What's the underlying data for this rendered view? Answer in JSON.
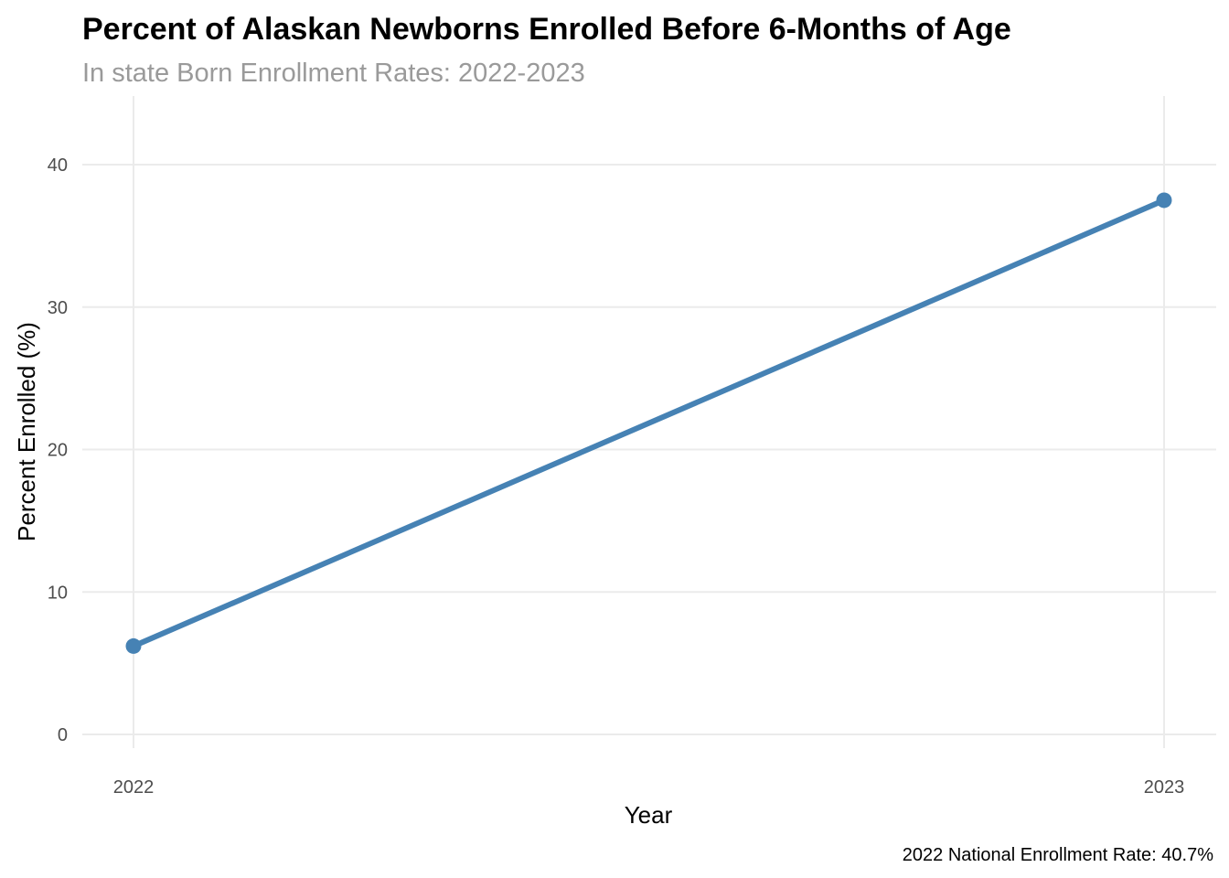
{
  "chart_data": {
    "type": "line",
    "title": "Percent of Alaskan Newborns Enrolled Before 6-Months of Age",
    "subtitle": "In state Born Enrollment Rates: 2022-2023",
    "xlabel": "Year",
    "ylabel": "Percent Enrolled (%)",
    "caption": "2022 National Enrollment Rate: 40.7%",
    "x": [
      "2022",
      "2023"
    ],
    "series": [
      {
        "values": [
          6.2,
          37.5
        ]
      }
    ],
    "ylim": [
      0,
      44
    ],
    "yticks": [
      "0",
      "10",
      "20",
      "30",
      "40"
    ],
    "ytick_values": [
      0,
      10,
      20,
      30,
      40
    ],
    "grid": true,
    "legend": "none",
    "colors": {
      "series": "#4682b4",
      "grid": "#ebebeb"
    }
  }
}
